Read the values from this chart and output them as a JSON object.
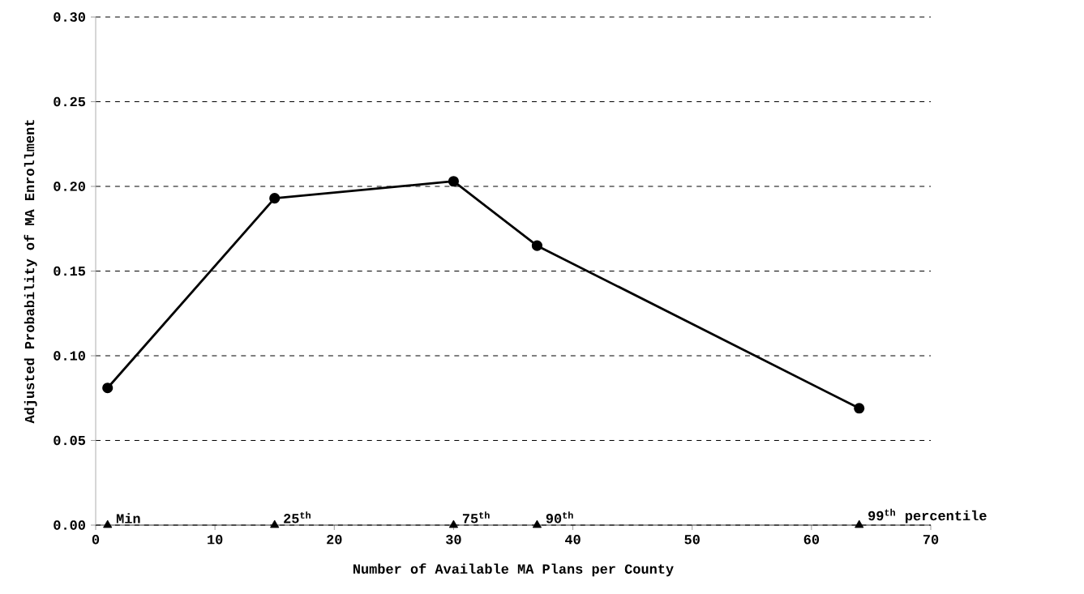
{
  "chart_data": {
    "type": "line",
    "xlabel": "Number of Available MA Plans per County",
    "ylabel": "Adjusted Probability of MA Enrollment",
    "series": [
      {
        "color": "#000000",
        "x": [
          1,
          15,
          30,
          37,
          64
        ],
        "values": [
          0.081,
          0.193,
          0.203,
          0.165,
          0.069
        ]
      },
      {
        "type": "scatter",
        "marker": "triangle",
        "color": "#000000",
        "x": [
          1,
          15,
          30,
          37,
          64
        ],
        "values": [
          0,
          0,
          0,
          0,
          0
        ]
      }
    ],
    "marker": "circle",
    "line_style": "solid",
    "grid": "y",
    "xlim": [
      0,
      70
    ],
    "ylim": [
      0,
      0.3
    ],
    "xticks": [
      0,
      10,
      20,
      30,
      40,
      50,
      60,
      70
    ],
    "yticks": [
      {
        "value": 0,
        "label": "0.00"
      },
      {
        "value": 0.05,
        "label": "0.05"
      },
      {
        "value": 0.1,
        "label": "0.10"
      },
      {
        "value": 0.15,
        "label": "0.15"
      },
      {
        "value": 0.2,
        "label": "0.20"
      },
      {
        "value": 0.25,
        "label": "0.25"
      },
      {
        "value": 0.3,
        "label": "0.30"
      }
    ],
    "annotations": [
      {
        "text": "Min",
        "x": 1,
        "y": 0
      },
      {
        "text": "25$^{th}$",
        "x": 15,
        "y": 0
      },
      {
        "text": "75$^{th}$",
        "x": 30,
        "y": 0
      },
      {
        "text": "90$^{th}$",
        "x": 37,
        "y": 0
      },
      {
        "text": "99$^{th}$ percentile",
        "x": 64,
        "y": 0
      }
    ]
  }
}
